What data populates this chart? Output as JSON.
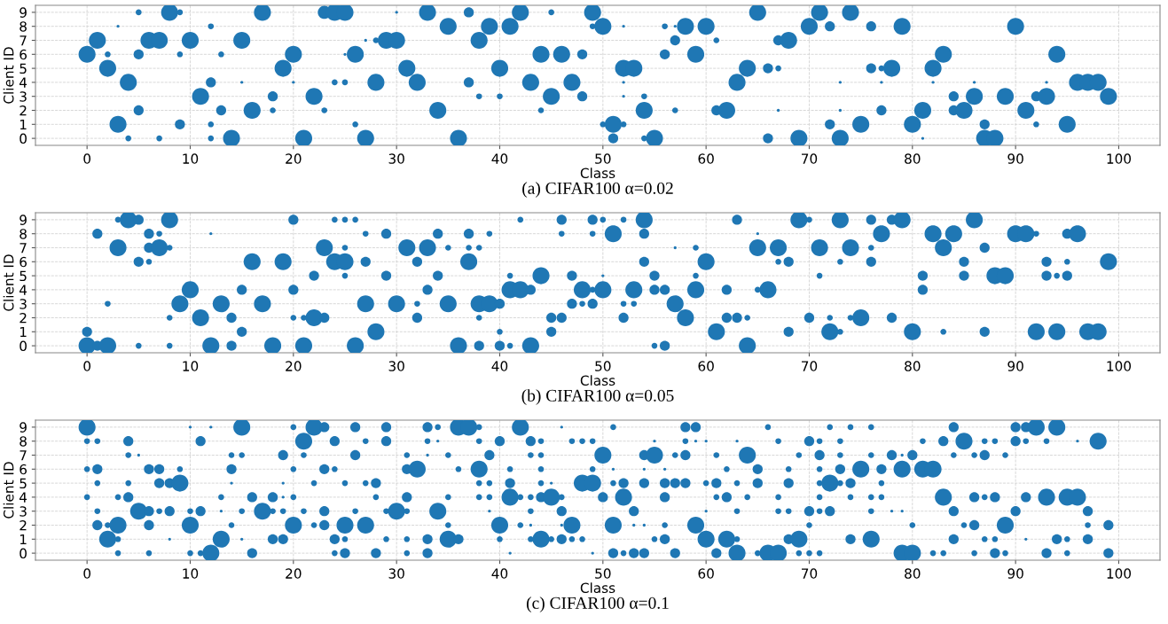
{
  "chart_data": [
    {
      "type": "bubble",
      "xlabel": "Class",
      "ylabel": "Client ID",
      "color": "#1f77b4",
      "xlim": [
        -5,
        104
      ],
      "xticks": [
        0,
        10,
        20,
        30,
        40,
        50,
        60,
        70,
        80,
        90,
        100
      ],
      "ylim": [
        -0.5,
        9.5
      ],
      "yticks": [
        0,
        1,
        2,
        3,
        4,
        5,
        6,
        7,
        8,
        9
      ],
      "grid": true,
      "annotations": [
        "(a) CIFAR100 α=0.02"
      ],
      "series": [
        {
          "x": [
            5,
            8,
            9,
            17,
            23,
            24,
            25,
            30,
            33,
            37,
            42,
            45,
            49,
            65,
            71,
            74
          ],
          "values": [
            9,
            9,
            9,
            9,
            9,
            9,
            9,
            9,
            9,
            9,
            9,
            9,
            9,
            9,
            9,
            9
          ],
          "sizes": [
            0.12,
            1,
            0.12,
            1,
            0.6,
            1,
            1,
            0.03,
            1,
            0.35,
            1,
            0.12,
            1,
            1,
            1,
            1
          ]
        },
        {
          "x": [
            3,
            12,
            35,
            39,
            41,
            49,
            50,
            52,
            56,
            57,
            58,
            60,
            70,
            72,
            76,
            79,
            90
          ],
          "values": [
            8,
            8,
            8,
            8,
            8,
            8,
            8,
            8,
            8,
            8,
            8,
            8,
            8,
            8,
            8,
            8,
            8
          ],
          "sizes": [
            0.03,
            0.12,
            1,
            1,
            1,
            0.12,
            1,
            0.03,
            0.12,
            0.03,
            1,
            1,
            1,
            0.35,
            0.35,
            1,
            1
          ]
        },
        {
          "x": [
            1,
            6,
            7,
            10,
            15,
            27,
            28,
            29,
            30,
            38,
            57,
            61,
            67,
            68
          ],
          "values": [
            7,
            7,
            7,
            7,
            7,
            7,
            7,
            7,
            7,
            7,
            7,
            7,
            7,
            7
          ],
          "sizes": [
            1,
            1,
            1,
            1,
            1,
            0.03,
            0.12,
            1,
            1,
            1,
            0.35,
            0.12,
            0.35,
            1
          ]
        },
        {
          "x": [
            0,
            2,
            5,
            9,
            13,
            20,
            25,
            26,
            44,
            46,
            48,
            56,
            59,
            83,
            94
          ],
          "values": [
            6,
            6,
            6,
            6,
            6,
            6,
            6,
            6,
            6,
            6,
            6,
            6,
            6,
            6,
            6
          ],
          "sizes": [
            1,
            0.12,
            0.35,
            0.12,
            0.12,
            1,
            0.03,
            1,
            1,
            1,
            0.35,
            0.35,
            1,
            1,
            1
          ]
        },
        {
          "x": [
            2,
            19,
            31,
            40,
            52,
            53,
            64,
            66,
            67,
            76,
            77,
            78,
            82
          ],
          "values": [
            5,
            5,
            5,
            5,
            5,
            5,
            5,
            5,
            5,
            5,
            5,
            5,
            5
          ],
          "sizes": [
            1,
            1,
            1,
            1,
            1,
            1,
            1,
            0.35,
            0.12,
            0.35,
            0.12,
            1,
            1
          ]
        },
        {
          "x": [
            4,
            12,
            15,
            20,
            24,
            25,
            28,
            32,
            37,
            43,
            47,
            52,
            63,
            73,
            77,
            82,
            86,
            93,
            96,
            97,
            98
          ],
          "values": [
            4,
            4,
            4,
            4,
            4,
            4,
            4,
            4,
            4,
            4,
            4,
            4,
            4,
            4,
            4,
            4,
            4,
            4,
            4,
            4,
            4
          ],
          "sizes": [
            1,
            0.35,
            0.03,
            0.03,
            0.12,
            0.12,
            1,
            1,
            0.35,
            1,
            1,
            0.03,
            1,
            0.03,
            0.03,
            0.03,
            0.03,
            0.03,
            1,
            1,
            1
          ]
        },
        {
          "x": [
            11,
            18,
            22,
            38,
            40,
            45,
            48,
            52,
            54,
            84,
            86,
            89,
            92,
            93,
            99
          ],
          "values": [
            3,
            3,
            3,
            3,
            3,
            3,
            3,
            3,
            3,
            3,
            3,
            3,
            3,
            3,
            3
          ],
          "sizes": [
            1,
            0.35,
            1,
            0.12,
            0.12,
            1,
            0.35,
            0.03,
            0.12,
            0.35,
            1,
            1,
            0.35,
            1,
            1
          ]
        },
        {
          "x": [
            5,
            13,
            16,
            18,
            23,
            34,
            44,
            54,
            57,
            61,
            62,
            67,
            73,
            77,
            81,
            84,
            85,
            91
          ],
          "values": [
            2,
            2,
            2,
            2,
            2,
            2,
            2,
            2,
            2,
            2,
            2,
            2,
            2,
            2,
            2,
            2,
            2,
            2
          ],
          "sizes": [
            0.35,
            0.35,
            1,
            0.12,
            0.12,
            1,
            0.12,
            1,
            0.12,
            0.35,
            1,
            0.03,
            0.03,
            0.35,
            1,
            0.35,
            1,
            1
          ]
        },
        {
          "x": [
            3,
            9,
            12,
            26,
            50,
            51,
            52,
            72,
            75,
            80,
            87,
            92,
            95
          ],
          "values": [
            1,
            1,
            1,
            1,
            1,
            1,
            1,
            1,
            1,
            1,
            1,
            1,
            1
          ],
          "sizes": [
            1,
            0.35,
            0.12,
            0.12,
            0.12,
            1,
            0.12,
            0.35,
            1,
            1,
            0.35,
            0.12,
            1
          ]
        },
        {
          "x": [
            4,
            7,
            12,
            14,
            21,
            27,
            36,
            51,
            54,
            55,
            66,
            69,
            73,
            81,
            87,
            88
          ],
          "values": [
            0,
            0,
            0,
            0,
            0,
            0,
            0,
            0,
            0,
            0,
            0,
            0,
            0,
            0,
            0,
            0
          ],
          "sizes": [
            0.12,
            0.12,
            0.12,
            1,
            1,
            1,
            1,
            0.35,
            0.12,
            1,
            0.35,
            1,
            1,
            0.03,
            1,
            1
          ]
        }
      ]
    },
    {
      "type": "bubble",
      "xlabel": "Class",
      "ylabel": "Client ID",
      "color": "#1f77b4",
      "xlim": [
        -5,
        104
      ],
      "xticks": [
        0,
        10,
        20,
        30,
        40,
        50,
        60,
        70,
        80,
        90,
        100
      ],
      "ylim": [
        -0.5,
        9.5
      ],
      "yticks": [
        0,
        1,
        2,
        3,
        4,
        5,
        6,
        7,
        8,
        9
      ],
      "grid": true,
      "annotations": [
        "(b) CIFAR100 α=0.05"
      ],
      "series": [
        {
          "x": [
            3,
            4,
            5,
            8,
            20,
            24,
            25,
            26,
            42,
            46,
            49,
            50,
            52,
            54,
            63,
            69,
            70,
            73,
            76,
            78,
            79,
            86
          ],
          "values": [
            9,
            9,
            9,
            9,
            9,
            9,
            9,
            9,
            9,
            9,
            9,
            9,
            9,
            9,
            9,
            9,
            9,
            9,
            9,
            9,
            9,
            9
          ],
          "sizes": [
            0.12,
            1,
            0.35,
            1,
            0.35,
            0.12,
            0.12,
            0.12,
            0.12,
            0.35,
            0.35,
            0.12,
            0.12,
            1,
            0.35,
            1,
            0.12,
            1,
            0.35,
            0.35,
            1,
            1
          ]
        },
        {
          "x": [
            1,
            6,
            7,
            12,
            27,
            29,
            34,
            37,
            39,
            46,
            49,
            51,
            54,
            65,
            77,
            82,
            84,
            90,
            91,
            92,
            95,
            96
          ],
          "values": [
            8,
            8,
            8,
            8,
            8,
            8,
            8,
            8,
            8,
            8,
            8,
            8,
            8,
            8,
            8,
            8,
            8,
            8,
            8,
            8,
            8,
            8
          ],
          "sizes": [
            0.35,
            0.35,
            0.12,
            0.03,
            0.12,
            0.35,
            0.35,
            0.35,
            0.12,
            0.12,
            0.12,
            1,
            0.35,
            0.03,
            1,
            1,
            1,
            1,
            1,
            0.12,
            0.35,
            1
          ]
        },
        {
          "x": [
            3,
            6,
            7,
            8,
            23,
            25,
            31,
            33,
            35,
            37,
            38,
            57,
            59,
            65,
            67,
            71,
            74,
            76,
            83,
            87
          ],
          "values": [
            7,
            7,
            7,
            7,
            7,
            7,
            7,
            7,
            7,
            7,
            7,
            7,
            7,
            7,
            7,
            7,
            7,
            7,
            7,
            7
          ],
          "sizes": [
            1,
            0.35,
            1,
            0.12,
            1,
            0.12,
            1,
            1,
            0.12,
            0.12,
            0.12,
            0.03,
            0.12,
            1,
            1,
            1,
            1,
            0.12,
            1,
            0.35
          ]
        },
        {
          "x": [
            5,
            6,
            16,
            19,
            24,
            25,
            27,
            32,
            37,
            54,
            60,
            67,
            68,
            73,
            76,
            85,
            93,
            95,
            99
          ],
          "values": [
            6,
            6,
            6,
            6,
            6,
            6,
            6,
            6,
            6,
            6,
            6,
            6,
            6,
            6,
            6,
            6,
            6,
            6,
            6
          ],
          "sizes": [
            0.35,
            0.12,
            1,
            1,
            1,
            1,
            0.35,
            0.35,
            1,
            0.35,
            1,
            0.12,
            0.35,
            0.12,
            0.35,
            0.35,
            0.35,
            0.12,
            1
          ]
        },
        {
          "x": [
            22,
            25,
            29,
            34,
            41,
            44,
            47,
            50,
            55,
            59,
            71,
            81,
            85,
            88,
            89,
            93,
            94,
            95
          ],
          "values": [
            5,
            5,
            5,
            5,
            5,
            5,
            5,
            5,
            5,
            5,
            5,
            5,
            5,
            5,
            5,
            5,
            5,
            5
          ],
          "sizes": [
            0.35,
            0.12,
            0.35,
            0.35,
            0.12,
            1,
            0.35,
            0.03,
            0.35,
            0.12,
            0.12,
            0.35,
            0.35,
            1,
            1,
            0.35,
            0.12,
            0.35
          ]
        },
        {
          "x": [
            10,
            15,
            20,
            33,
            41,
            42,
            43,
            48,
            49,
            50,
            53,
            55,
            56,
            59,
            62,
            65,
            66,
            81
          ],
          "values": [
            4,
            4,
            4,
            4,
            4,
            4,
            4,
            4,
            4,
            4,
            4,
            4,
            4,
            4,
            4,
            4,
            4,
            4
          ],
          "sizes": [
            1,
            0.35,
            0.35,
            0.35,
            1,
            1,
            0.35,
            1,
            0.12,
            1,
            1,
            0.35,
            0.35,
            1,
            0.35,
            0.12,
            1,
            0.35
          ]
        },
        {
          "x": [
            2,
            9,
            13,
            17,
            27,
            30,
            32,
            35,
            38,
            39,
            40,
            47,
            48,
            49,
            52,
            53,
            57
          ],
          "values": [
            3,
            3,
            3,
            3,
            3,
            3,
            3,
            3,
            3,
            3,
            3,
            3,
            3,
            3,
            3,
            3,
            3
          ],
          "sizes": [
            0.12,
            1,
            1,
            1,
            1,
            1,
            0.12,
            1,
            1,
            1,
            0.35,
            0.35,
            0.12,
            0.35,
            0.12,
            0.12,
            1
          ]
        },
        {
          "x": [
            8,
            11,
            14,
            20,
            21,
            22,
            23,
            32,
            38,
            45,
            46,
            52,
            58,
            62,
            63,
            64,
            70,
            72,
            74,
            75,
            78
          ],
          "values": [
            2,
            2,
            2,
            2,
            2,
            2,
            2,
            2,
            2,
            2,
            2,
            2,
            2,
            2,
            2,
            2,
            2,
            2,
            2,
            2,
            2
          ],
          "sizes": [
            0.12,
            1,
            0.35,
            0.12,
            0.12,
            1,
            0.35,
            0.35,
            0.12,
            0.35,
            0.35,
            0.35,
            1,
            0.35,
            0.35,
            0.12,
            0.35,
            0.12,
            0.12,
            1,
            0.35
          ]
        },
        {
          "x": [
            0,
            15,
            28,
            40,
            45,
            61,
            68,
            72,
            73,
            80,
            83,
            87,
            92,
            94,
            97,
            98
          ],
          "values": [
            1,
            1,
            1,
            1,
            1,
            1,
            1,
            1,
            1,
            1,
            1,
            1,
            1,
            1,
            1,
            1
          ],
          "sizes": [
            0.35,
            0.35,
            1,
            0.12,
            0.35,
            1,
            0.35,
            1,
            0.12,
            1,
            0.12,
            0.35,
            1,
            1,
            1,
            1
          ]
        },
        {
          "x": [
            0,
            1,
            2,
            5,
            8,
            12,
            14,
            18,
            21,
            26,
            36,
            38,
            40,
            41,
            43,
            55,
            56,
            64
          ],
          "values": [
            0,
            0,
            0,
            0,
            0,
            0,
            0,
            0,
            0,
            0,
            0,
            0,
            0,
            0,
            0,
            0,
            0,
            0
          ],
          "sizes": [
            1,
            0.35,
            1,
            0.12,
            0.12,
            1,
            0.35,
            1,
            1,
            1,
            1,
            0.35,
            0.35,
            0.12,
            1,
            0.12,
            0.35,
            1
          ]
        }
      ]
    },
    {
      "type": "bubble",
      "xlabel": "Class",
      "ylabel": "Client ID",
      "color": "#1f77b4",
      "xlim": [
        -5,
        104
      ],
      "xticks": [
        0,
        10,
        20,
        30,
        40,
        50,
        60,
        70,
        80,
        90,
        100
      ],
      "ylim": [
        -0.5,
        9.5
      ],
      "yticks": [
        0,
        1,
        2,
        3,
        4,
        5,
        6,
        7,
        8,
        9
      ],
      "grid": true,
      "annotations": [
        "(c) CIFAR100 α=0.1"
      ],
      "series": [
        {
          "x": [
            0,
            10,
            12,
            15,
            20,
            22,
            23,
            26,
            29,
            33,
            34,
            36,
            37,
            38,
            42,
            46,
            51,
            58,
            59,
            66,
            72,
            74,
            76,
            84,
            90,
            91,
            92,
            94
          ],
          "values": [
            9,
            9,
            9,
            9,
            9,
            9,
            9,
            9,
            9,
            9,
            9,
            9,
            9,
            9,
            9,
            9,
            9,
            9,
            9,
            9,
            9,
            9,
            9,
            9,
            9,
            9,
            9,
            9
          ],
          "sizes": [
            1,
            0.03,
            0.03,
            1,
            0.12,
            1,
            0.35,
            0.35,
            0.35,
            0.35,
            0.12,
            1,
            1,
            0.12,
            1,
            0.03,
            0.12,
            0.35,
            0.35,
            0.12,
            0.12,
            0.12,
            0.12,
            0.35,
            0.35,
            0.35,
            1,
            1
          ]
        },
        {
          "x": [
            0,
            1,
            4,
            11,
            21,
            24,
            27,
            29,
            33,
            34,
            38,
            40,
            43,
            44,
            47,
            48,
            49,
            55,
            58,
            59,
            60,
            63,
            67,
            70,
            71,
            73,
            81,
            83,
            85,
            87,
            88,
            90,
            91,
            93,
            96,
            98
          ],
          "values": [
            8,
            8,
            8,
            8,
            8,
            8,
            8,
            8,
            8,
            8,
            8,
            8,
            8,
            8,
            8,
            8,
            8,
            8,
            8,
            8,
            8,
            8,
            8,
            8,
            8,
            8,
            8,
            8,
            8,
            8,
            8,
            8,
            8,
            8,
            8,
            8
          ],
          "sizes": [
            0.12,
            0.12,
            0.35,
            0.35,
            1,
            0.35,
            0.12,
            0.35,
            0.12,
            0.03,
            0.12,
            0.35,
            0.35,
            0.12,
            0.12,
            0.12,
            0.12,
            0.03,
            0.12,
            0.03,
            0.03,
            0.03,
            0.12,
            0.35,
            0.12,
            0.12,
            0.12,
            0.35,
            1,
            0.12,
            0.12,
            0.35,
            0.12,
            0.12,
            0.03,
            1
          ]
        },
        {
          "x": [
            4,
            5,
            14,
            15,
            19,
            21,
            26,
            31,
            33,
            35,
            39,
            43,
            44,
            50,
            54,
            55,
            57,
            58,
            61,
            64,
            69,
            71,
            73,
            76,
            78,
            79,
            80,
            84,
            86,
            87,
            89
          ],
          "values": [
            7,
            7,
            7,
            7,
            7,
            7,
            7,
            7,
            7,
            7,
            7,
            7,
            7,
            7,
            7,
            7,
            7,
            7,
            7,
            7,
            7,
            7,
            7,
            7,
            7,
            7,
            7,
            7,
            7,
            7,
            7
          ],
          "sizes": [
            0.12,
            0.03,
            0.12,
            0.12,
            0.35,
            0.12,
            0.35,
            0.12,
            0.03,
            0.12,
            0.35,
            0.12,
            0.12,
            1,
            0.35,
            1,
            0.12,
            0.35,
            0.12,
            1,
            0.12,
            0.35,
            0.12,
            0.12,
            0.35,
            0.03,
            0.35,
            0.12,
            0.12,
            0.35,
            0.12
          ]
        },
        {
          "x": [
            0,
            1,
            6,
            7,
            9,
            14,
            20,
            23,
            24,
            31,
            32,
            36,
            38,
            41,
            44,
            49,
            51,
            54,
            56,
            62,
            65,
            68,
            71,
            73,
            75,
            77,
            79,
            81,
            82
          ],
          "values": [
            6,
            6,
            6,
            6,
            6,
            6,
            6,
            6,
            6,
            6,
            6,
            6,
            6,
            6,
            6,
            6,
            6,
            6,
            6,
            6,
            6,
            6,
            6,
            6,
            6,
            6,
            6,
            6,
            6
          ],
          "sizes": [
            0.12,
            0.35,
            0.35,
            0.35,
            0.12,
            0.35,
            0.12,
            0.35,
            0.12,
            0.35,
            1,
            0.12,
            1,
            0.12,
            0.12,
            0.12,
            0.03,
            0.03,
            0.03,
            0.12,
            0.35,
            0.12,
            0.12,
            0.35,
            1,
            0.35,
            1,
            1,
            1
          ]
        },
        {
          "x": [
            1,
            4,
            7,
            8,
            9,
            14,
            19,
            22,
            25,
            27,
            28,
            38,
            39,
            41,
            44,
            45,
            48,
            49,
            51,
            52,
            54,
            56,
            57,
            58,
            60,
            61,
            63,
            65,
            68,
            71,
            72,
            73,
            74,
            77
          ],
          "values": [
            5,
            5,
            5,
            5,
            5,
            5,
            5,
            5,
            5,
            5,
            5,
            5,
            5,
            5,
            5,
            5,
            5,
            5,
            5,
            5,
            5,
            5,
            5,
            5,
            5,
            5,
            5,
            5,
            5,
            5,
            5,
            5,
            5,
            5
          ],
          "sizes": [
            0.12,
            0.12,
            0.35,
            0.35,
            1,
            0.03,
            0.03,
            0.12,
            0.12,
            0.12,
            0.35,
            0.12,
            0.12,
            0.35,
            0.12,
            0.03,
            1,
            1,
            0.12,
            0.35,
            0.35,
            0.35,
            0.35,
            0.35,
            0.12,
            0.35,
            0.12,
            0.35,
            0.35,
            0.12,
            1,
            0.12,
            0.35,
            0.12
          ]
        },
        {
          "x": [
            0,
            3,
            4,
            13,
            16,
            18,
            19,
            20,
            28,
            31,
            35,
            38,
            39,
            41,
            42,
            43,
            44,
            45,
            46,
            50,
            52,
            56,
            61,
            62,
            64,
            67,
            71,
            74,
            76,
            77,
            83,
            86,
            87,
            88,
            91,
            93,
            95,
            96
          ],
          "values": [
            4,
            4,
            4,
            4,
            4,
            4,
            4,
            4,
            4,
            4,
            4,
            4,
            4,
            4,
            4,
            4,
            4,
            4,
            4,
            4,
            4,
            4,
            4,
            4,
            4,
            4,
            4,
            4,
            4,
            4,
            4,
            4,
            4,
            4,
            4,
            4,
            4,
            4
          ],
          "sizes": [
            0.12,
            0.12,
            0.35,
            0.12,
            0.35,
            0.35,
            0.03,
            0.12,
            0.12,
            0.35,
            0.12,
            0.12,
            0.12,
            1,
            0.12,
            0.12,
            0.35,
            1,
            0.12,
            0.35,
            1,
            0.35,
            0.12,
            0.35,
            0.12,
            0.12,
            0.12,
            0.12,
            0.12,
            0.12,
            1,
            0.35,
            0.12,
            0.35,
            0.35,
            1,
            1,
            1
          ]
        },
        {
          "x": [
            1,
            5,
            6,
            7,
            8,
            10,
            11,
            13,
            15,
            17,
            18,
            19,
            21,
            23,
            26,
            29,
            30,
            31,
            34,
            39,
            43,
            46,
            53,
            60,
            63,
            67,
            68,
            70,
            71,
            72,
            76,
            78,
            79,
            84,
            90,
            97
          ],
          "values": [
            3,
            3,
            3,
            3,
            3,
            3,
            3,
            3,
            3,
            3,
            3,
            3,
            3,
            3,
            3,
            3,
            3,
            3,
            3,
            3,
            3,
            3,
            3,
            3,
            3,
            3,
            3,
            3,
            3,
            3,
            3,
            3,
            3,
            3,
            3,
            3
          ],
          "sizes": [
            0.12,
            1,
            0.35,
            0.12,
            0.35,
            0.12,
            0.35,
            0.03,
            0.12,
            1,
            0.12,
            0.12,
            0.12,
            0.35,
            0.12,
            0.12,
            1,
            0.12,
            1,
            0.03,
            0.12,
            0.35,
            0.35,
            0.03,
            0.12,
            0.12,
            0.12,
            0.35,
            0.12,
            0.35,
            0.12,
            0.03,
            0.03,
            0.35,
            0.35,
            0.35
          ]
        },
        {
          "x": [
            1,
            2,
            3,
            6,
            10,
            14,
            20,
            22,
            23,
            25,
            27,
            35,
            40,
            42,
            43,
            46,
            47,
            51,
            53,
            54,
            56,
            59,
            70,
            80,
            85,
            86,
            89,
            97,
            99
          ],
          "values": [
            2,
            2,
            2,
            2,
            2,
            2,
            2,
            2,
            2,
            2,
            2,
            2,
            2,
            2,
            2,
            2,
            2,
            2,
            2,
            2,
            2,
            2,
            2,
            2,
            2,
            2,
            2,
            2,
            2
          ],
          "sizes": [
            0.35,
            0.12,
            1,
            0.35,
            1,
            0.12,
            1,
            0.12,
            0.35,
            1,
            1,
            0.12,
            1,
            0.12,
            0.03,
            0.03,
            1,
            1,
            0.03,
            0.03,
            0.12,
            1,
            0.12,
            0.12,
            0.12,
            0.35,
            1,
            0.12,
            0.35
          ]
        },
        {
          "x": [
            2,
            3,
            8,
            13,
            15,
            18,
            19,
            24,
            25,
            29,
            31,
            33,
            35,
            36,
            40,
            43,
            44,
            45,
            46,
            47,
            48,
            55,
            56,
            60,
            62,
            63,
            68,
            69,
            74,
            76,
            84,
            87,
            88,
            91,
            94,
            95,
            97
          ],
          "values": [
            1,
            1,
            1,
            1,
            1,
            1,
            1,
            1,
            1,
            1,
            1,
            1,
            1,
            1,
            1,
            1,
            1,
            1,
            1,
            1,
            1,
            1,
            1,
            1,
            1,
            1,
            1,
            1,
            1,
            1,
            1,
            1,
            1,
            1,
            1,
            1,
            1
          ],
          "sizes": [
            1,
            0.12,
            0.03,
            1,
            0.03,
            0.35,
            0.35,
            0.35,
            0.12,
            0.12,
            0.12,
            0.35,
            1,
            0.35,
            0.12,
            0.12,
            1,
            0.12,
            0.35,
            0.12,
            0.12,
            0.12,
            0.35,
            1,
            1,
            0.12,
            0.35,
            1,
            0.35,
            1,
            0.35,
            0.12,
            0.12,
            0.03,
            0.35,
            0.12,
            0.35
          ]
        },
        {
          "x": [
            3,
            6,
            10,
            11,
            12,
            16,
            24,
            25,
            28,
            31,
            33,
            41,
            49,
            51,
            52,
            53,
            54,
            57,
            61,
            63,
            65,
            66,
            67,
            69,
            70,
            71,
            79,
            80,
            82,
            83,
            86,
            88,
            89,
            93,
            95,
            99
          ],
          "values": [
            0,
            0,
            0,
            0,
            0,
            0,
            0,
            0,
            0,
            0,
            0,
            0,
            0,
            0,
            0,
            0,
            0,
            0,
            0,
            0,
            0,
            0,
            0,
            0,
            0,
            0,
            0,
            0,
            0,
            0,
            0,
            0,
            0,
            0,
            0,
            0
          ],
          "sizes": [
            0.12,
            0.12,
            0.12,
            0.12,
            1,
            0.35,
            0.12,
            0.35,
            0.35,
            0.12,
            0.35,
            0.03,
            0.03,
            0.35,
            0.12,
            0.35,
            0.35,
            0.35,
            0.35,
            1,
            0.12,
            1,
            1,
            0.12,
            0.12,
            0.12,
            1,
            1,
            0.12,
            0.12,
            0.12,
            0.35,
            0.12,
            0.35,
            0.12,
            0.35
          ]
        }
      ]
    }
  ]
}
